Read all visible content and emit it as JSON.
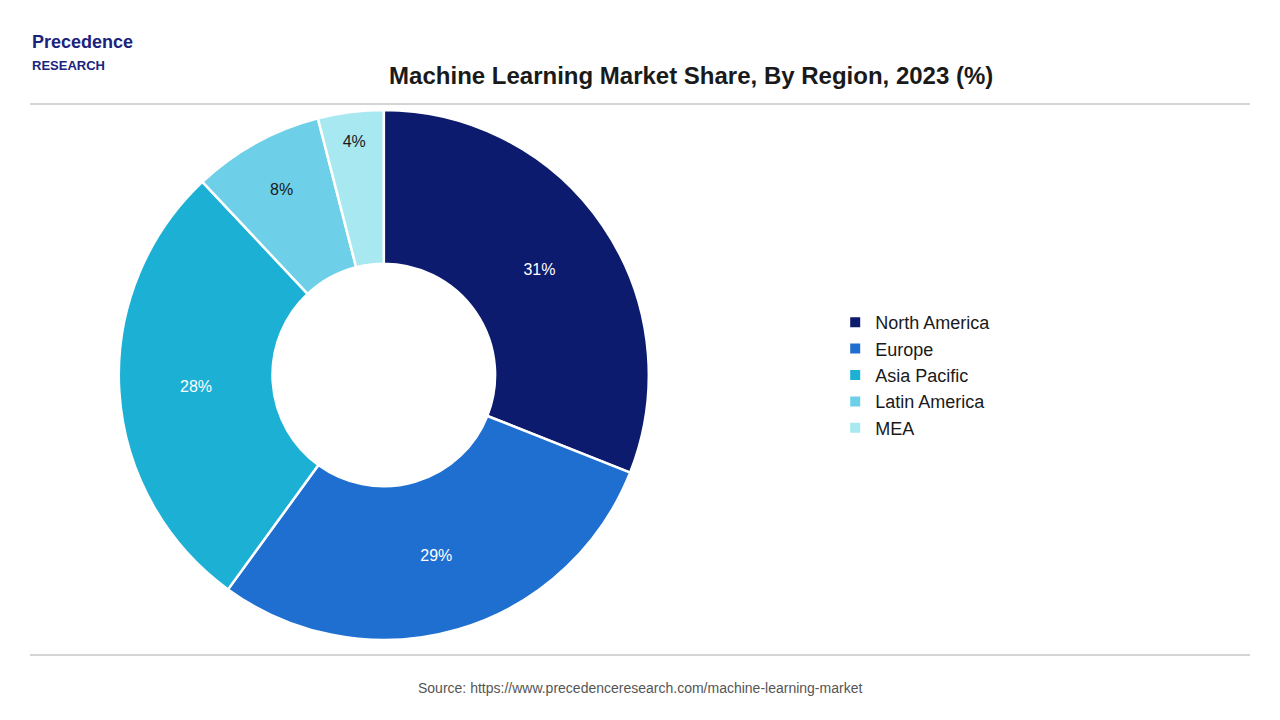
{
  "chart_data": {
    "type": "donut",
    "title": "Machine Learning Market Share, By Region, 2023 (%)",
    "categories": [
      "North America",
      "Europe",
      "Asia Pacific",
      "Latin America",
      "MEA"
    ],
    "values": [
      31,
      29,
      28,
      8,
      4
    ],
    "value_labels": [
      "31%",
      "29%",
      "28%",
      "8%",
      "4%"
    ],
    "colors": [
      "#0d1b6e",
      "#1f6fd0",
      "#1db0d5",
      "#6dcfe8",
      "#a8e8f0"
    ],
    "data_labels": true,
    "legend": "right",
    "annotations": [
      "Precedence",
      "RESEARCH",
      "Source: https://www.precedenceresearch.com/machine-learning-market"
    ]
  }
}
